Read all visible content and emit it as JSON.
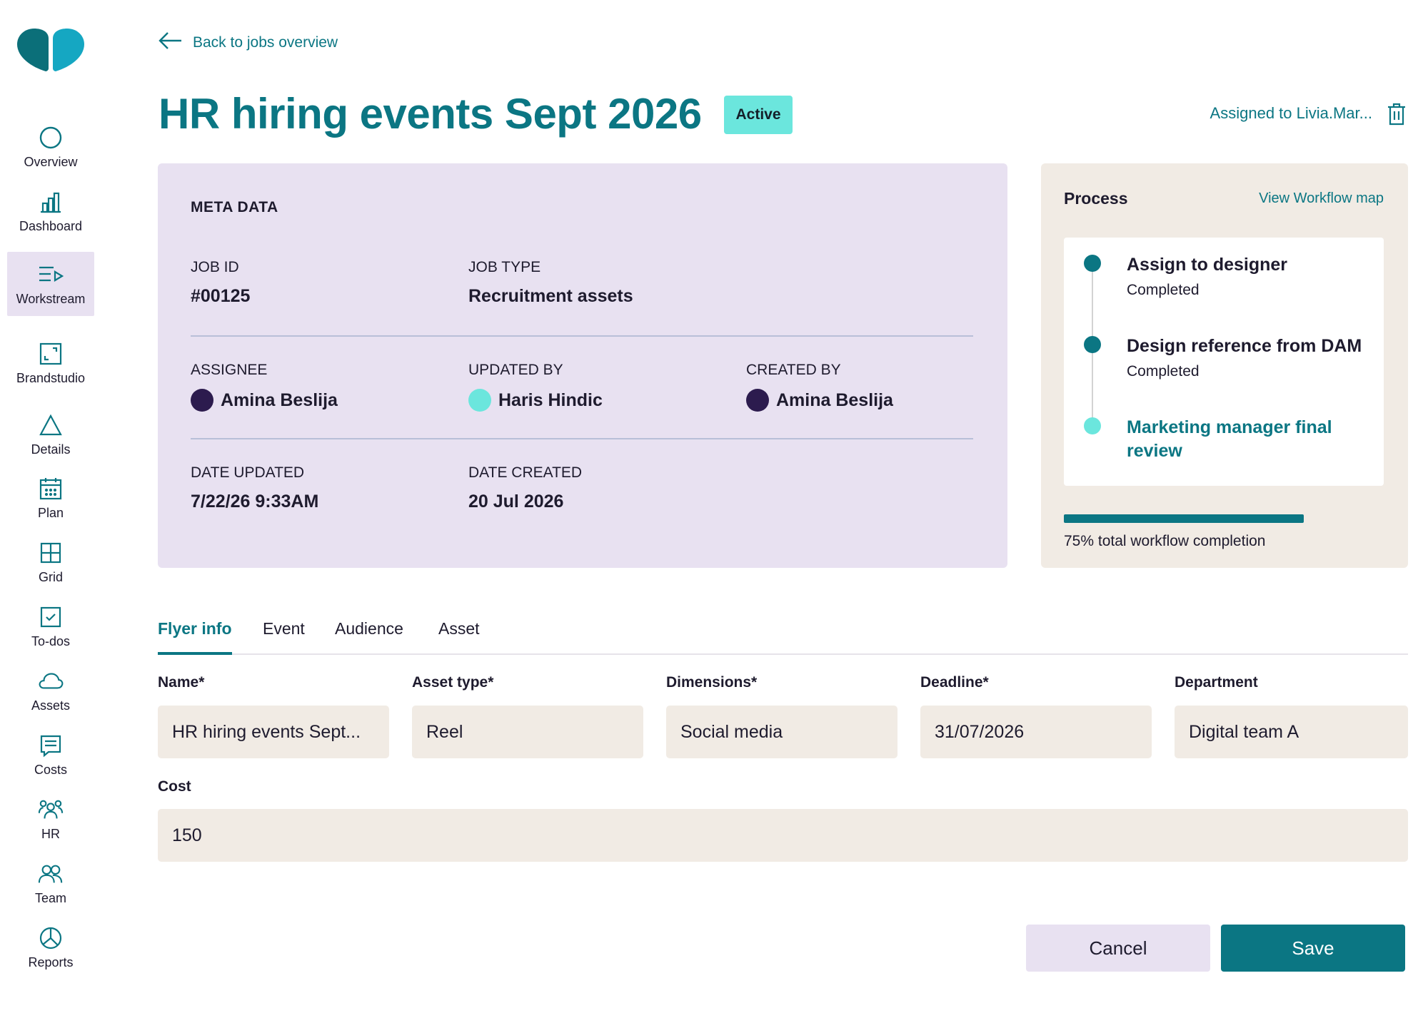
{
  "sidebar": {
    "items": [
      {
        "label": "Overview",
        "icon": "circle-icon"
      },
      {
        "label": "Dashboard",
        "icon": "bar-chart-icon"
      },
      {
        "label": "Workstream",
        "icon": "list-play-icon"
      },
      {
        "label": "Brandstudio",
        "icon": "frame-icon"
      },
      {
        "label": "Details",
        "icon": "triangle-icon"
      },
      {
        "label": "Plan",
        "icon": "calendar-icon"
      },
      {
        "label": "Grid",
        "icon": "grid-icon"
      },
      {
        "label": "To-dos",
        "icon": "checkbox-icon"
      },
      {
        "label": "Assets",
        "icon": "cloud-icon"
      },
      {
        "label": "Costs",
        "icon": "receipt-icon"
      },
      {
        "label": "HR",
        "icon": "people-group-icon"
      },
      {
        "label": "Team",
        "icon": "team-icon"
      },
      {
        "label": "Reports",
        "icon": "pie-chart-icon"
      }
    ],
    "active": "Workstream"
  },
  "header": {
    "back_label": "Back to jobs overview",
    "title": "HR hiring events Sept 2026",
    "status": "Active",
    "assigned": "Assigned to Livia.Mar..."
  },
  "meta": {
    "title": "META DATA",
    "job_id_label": "JOB ID",
    "job_id": "#00125",
    "job_type_label": "JOB TYPE",
    "job_type": "Recruitment assets",
    "assignee_label": "ASSIGNEE",
    "assignee": "Amina Beslija",
    "updated_by_label": "UPDATED BY",
    "updated_by": "Haris Hindic",
    "created_by_label": "CREATED BY",
    "created_by": "Amina Beslija",
    "date_updated_label": "DATE UPDATED",
    "date_updated": "7/22/26 9:33AM",
    "date_created_label": "DATE CREATED",
    "date_created": "20 Jul 2026"
  },
  "process": {
    "title": "Process",
    "workflow_link": "View Workflow map",
    "steps": [
      {
        "title": "Assign to designer",
        "status": "Completed"
      },
      {
        "title": "Design reference from DAM",
        "status": "Completed"
      },
      {
        "title": "Marketing manager final review",
        "status": ""
      }
    ],
    "completion": 0.75,
    "completion_text": "75% total workflow completion"
  },
  "tabs": [
    "Flyer info",
    "Event",
    "Audience",
    "Asset"
  ],
  "active_tab": "Flyer info",
  "form": {
    "name_label": "Name*",
    "name_value": "HR hiring events Sept...",
    "asset_type_label": "Asset type*",
    "asset_type_value": "Reel",
    "dimensions_label": "Dimensions*",
    "dimensions_value": "Social media",
    "deadline_label": "Deadline*",
    "deadline_value": "31/07/2026",
    "department_label": "Department",
    "department_value": "Digital team A",
    "cost_label": "Cost",
    "cost_value": "150"
  },
  "actions": {
    "cancel": "Cancel",
    "save": "Save"
  },
  "colors": {
    "brand": "#0b7683",
    "accent": "#6be6dd",
    "meta_bg": "#e8e1f1",
    "input_bg": "#f1ebe4",
    "avatar_dark": "#2c1b4e"
  }
}
